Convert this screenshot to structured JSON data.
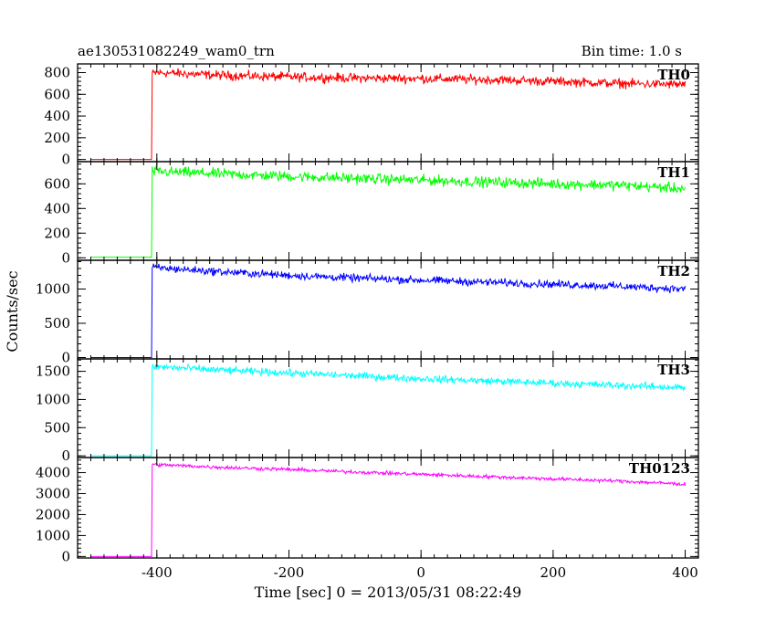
{
  "header": {
    "title": "ae130531082249_wam0_trn",
    "bin_time": "Bin time: 1.0 s"
  },
  "chart_data": {
    "type": "line",
    "xlabel": "Time [sec] 0 = 2013/05/31 08:22:49",
    "ylabel": "Counts/sec",
    "xlim": [
      -520,
      420
    ],
    "x_ticks": [
      -400,
      -200,
      0,
      200,
      400
    ],
    "grid": false,
    "panels": [
      {
        "name": "TH0",
        "color": "#ff0000",
        "ylim": [
          -20,
          880
        ],
        "y_ticks": [
          0,
          200,
          400,
          600,
          800
        ],
        "pre_x": [
          -500,
          -408
        ],
        "pre_value": 0,
        "rise_x": -408,
        "trend": [
          [
            -407,
            790
          ],
          [
            -400,
            800
          ],
          [
            -300,
            775
          ],
          [
            -200,
            760
          ],
          [
            -100,
            750
          ],
          [
            0,
            745
          ],
          [
            100,
            735
          ],
          [
            200,
            720
          ],
          [
            300,
            700
          ],
          [
            400,
            690
          ]
        ],
        "noise": 30
      },
      {
        "name": "TH1",
        "color": "#00ff00",
        "ylim": [
          -20,
          780
        ],
        "y_ticks": [
          0,
          200,
          400,
          600
        ],
        "pre_x": [
          -500,
          -408
        ],
        "pre_value": 5,
        "rise_x": -408,
        "trend": [
          [
            -407,
            700
          ],
          [
            -400,
            700
          ],
          [
            -300,
            680
          ],
          [
            -200,
            660
          ],
          [
            -100,
            645
          ],
          [
            0,
            630
          ],
          [
            100,
            615
          ],
          [
            200,
            600
          ],
          [
            300,
            590
          ],
          [
            400,
            560
          ]
        ],
        "noise": 30
      },
      {
        "name": "TH2",
        "color": "#0000ff",
        "ylim": [
          -20,
          1420
        ],
        "y_ticks": [
          0,
          500,
          1000
        ],
        "pre_x": [
          -500,
          -408
        ],
        "pre_value": 0,
        "rise_x": -408,
        "trend": [
          [
            -407,
            1320
          ],
          [
            -400,
            1310
          ],
          [
            -300,
            1250
          ],
          [
            -200,
            1200
          ],
          [
            -100,
            1160
          ],
          [
            0,
            1130
          ],
          [
            100,
            1100
          ],
          [
            200,
            1070
          ],
          [
            300,
            1040
          ],
          [
            400,
            1000
          ]
        ],
        "noise": 40
      },
      {
        "name": "TH3",
        "color": "#00ffff",
        "ylim": [
          -30,
          1720
        ],
        "y_ticks": [
          0,
          500,
          1000,
          1500
        ],
        "pre_x": [
          -500,
          -408
        ],
        "pre_value": 0,
        "rise_x": -408,
        "trend": [
          [
            -407,
            1580
          ],
          [
            -400,
            1580
          ],
          [
            -300,
            1520
          ],
          [
            -200,
            1470
          ],
          [
            -100,
            1420
          ],
          [
            0,
            1370
          ],
          [
            100,
            1330
          ],
          [
            200,
            1290
          ],
          [
            300,
            1250
          ],
          [
            400,
            1210
          ]
        ],
        "noise": 45
      },
      {
        "name": "TH0123",
        "color": "#ff00ff",
        "ylim": [
          -70,
          4720
        ],
        "y_ticks": [
          0,
          1000,
          2000,
          3000,
          4000
        ],
        "pre_x": [
          -500,
          -408
        ],
        "pre_value": 0,
        "rise_x": -408,
        "trend": [
          [
            -407,
            4400
          ],
          [
            -400,
            4380
          ],
          [
            -300,
            4250
          ],
          [
            -200,
            4150
          ],
          [
            -100,
            4030
          ],
          [
            0,
            3920
          ],
          [
            100,
            3810
          ],
          [
            200,
            3700
          ],
          [
            300,
            3600
          ],
          [
            400,
            3450
          ]
        ],
        "noise": 60
      }
    ]
  }
}
